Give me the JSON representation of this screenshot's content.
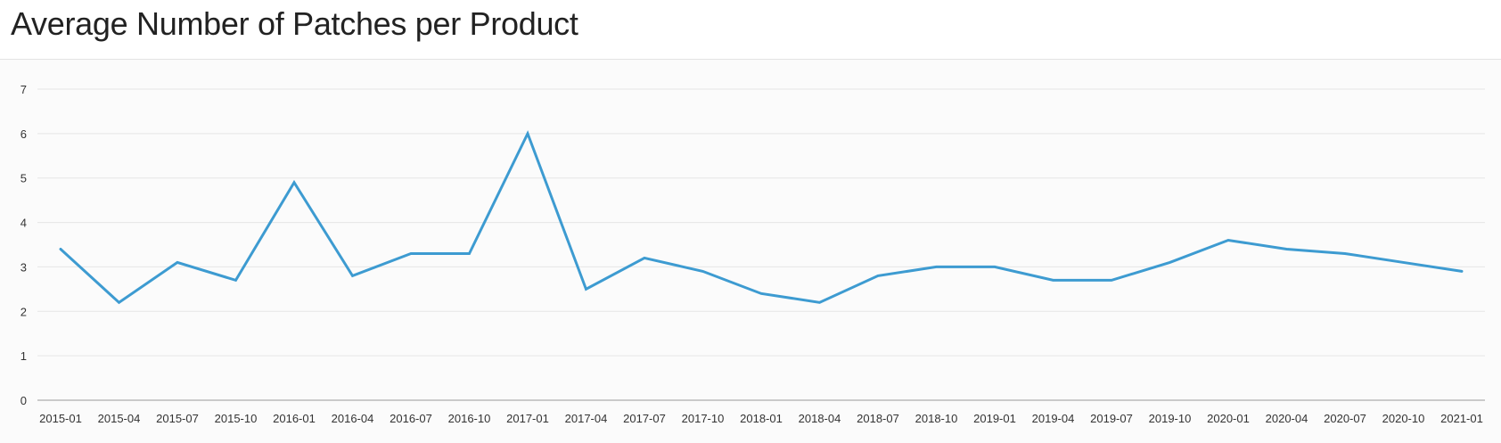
{
  "header": {
    "title": "Average Number of Patches per Product"
  },
  "colors": {
    "series": "#3d9bd1",
    "grid": "#e6e6e6",
    "axis": "#9a9a9a",
    "panel_background": "#fbfbfb"
  },
  "chart_data": {
    "type": "line",
    "title": "Average Number of Patches per Product",
    "xlabel": "",
    "ylabel": "",
    "ylim": [
      0,
      7
    ],
    "yticks": [
      0,
      1,
      2,
      3,
      4,
      5,
      6,
      7
    ],
    "grid": true,
    "legend": "none",
    "x": [
      "2015-01",
      "2015-04",
      "2015-07",
      "2015-10",
      "2016-01",
      "2016-04",
      "2016-07",
      "2016-10",
      "2017-01",
      "2017-04",
      "2017-07",
      "2017-10",
      "2018-01",
      "2018-04",
      "2018-07",
      "2018-10",
      "2019-01",
      "2019-04",
      "2019-07",
      "2019-10",
      "2020-01",
      "2020-04",
      "2020-07",
      "2020-10",
      "2021-01"
    ],
    "series": [
      {
        "values": [
          3.4,
          2.2,
          3.1,
          2.7,
          4.9,
          2.8,
          3.3,
          3.3,
          6.0,
          2.5,
          3.2,
          2.9,
          2.4,
          2.2,
          2.8,
          3.0,
          3.0,
          2.7,
          2.7,
          3.1,
          3.6,
          3.4,
          3.3,
          3.1,
          2.9
        ]
      }
    ]
  }
}
